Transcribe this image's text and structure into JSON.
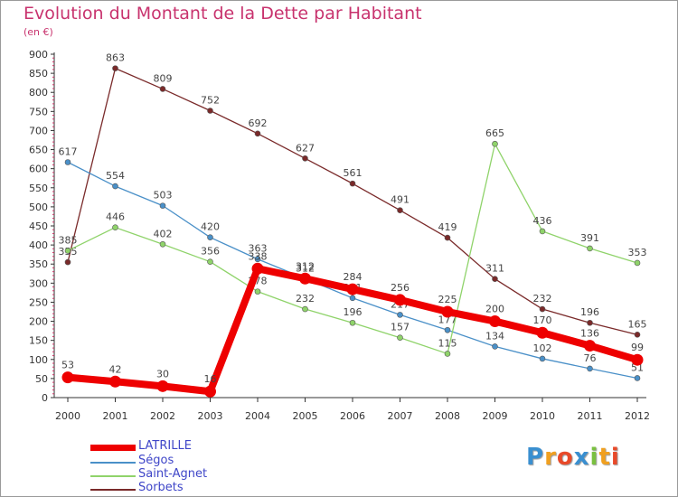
{
  "title": "Evolution du Montant de la Dette par Habitant",
  "unit": "(en €)",
  "logo": "Proxiti",
  "colors": {
    "title": "#c8336e",
    "legend_text": "#3f46c8",
    "axis": "#333333"
  },
  "chart_data": {
    "type": "line",
    "title": "Evolution du Montant de la Dette par Habitant",
    "ylabel": "(en €)",
    "xlabel": "",
    "ylim": [
      0,
      900
    ],
    "yticks": [
      "0",
      "50",
      "100",
      "150",
      "200",
      "250",
      "300",
      "350",
      "400",
      "450",
      "500",
      "550",
      "600",
      "650",
      "700",
      "750",
      "800",
      "850",
      "900"
    ],
    "x": [
      "2000",
      "2001",
      "2002",
      "2003",
      "2004",
      "2005",
      "2006",
      "2007",
      "2008",
      "2009",
      "2010",
      "2011",
      "2012"
    ],
    "series": [
      {
        "name": "Sorbets",
        "color": "#7a2a2a",
        "width": 1.3,
        "marker": 3,
        "values": [
          355,
          863,
          809,
          752,
          692,
          627,
          561,
          491,
          419,
          311,
          232,
          196,
          165
        ],
        "labels": [
          "355",
          "863",
          "809",
          "752",
          "692",
          "627",
          "561",
          "491",
          "419",
          "311",
          "232",
          "196",
          "165"
        ]
      },
      {
        "name": "Ségos",
        "color": "#4a90c8",
        "width": 1.3,
        "marker": 3,
        "values": [
          617,
          554,
          503,
          420,
          363,
          312,
          261,
          217,
          177,
          134,
          102,
          76,
          51
        ],
        "labels": [
          "617",
          "554",
          "503",
          "420",
          "363",
          "312",
          "261",
          "217",
          "177",
          "134",
          "102",
          "76",
          "51"
        ]
      },
      {
        "name": "Saint-Agnet",
        "color": "#8fd36a",
        "width": 1.3,
        "marker": 3,
        "values": [
          385,
          446,
          402,
          356,
          278,
          232,
          196,
          157,
          115,
          665,
          436,
          391,
          353
        ],
        "labels": [
          "385",
          "446",
          "402",
          "356",
          "278",
          "232",
          "196",
          "157",
          "115",
          "665",
          "436",
          "391",
          "353"
        ]
      },
      {
        "name": "LATRILLE",
        "color": "#ee0000",
        "width": 8,
        "marker": 6.5,
        "values": [
          53,
          42,
          30,
          16,
          338,
          312,
          284,
          256,
          225,
          200,
          170,
          136,
          99
        ],
        "labels": [
          "53",
          "42",
          "30",
          "16",
          "338",
          "312",
          "284",
          "256",
          "225",
          "200",
          "170",
          "136",
          "99"
        ]
      }
    ],
    "legend": {
      "position": "bottom-left",
      "items": [
        "LATRILLE",
        "Ségos",
        "Saint-Agnet",
        "Sorbets"
      ]
    }
  }
}
